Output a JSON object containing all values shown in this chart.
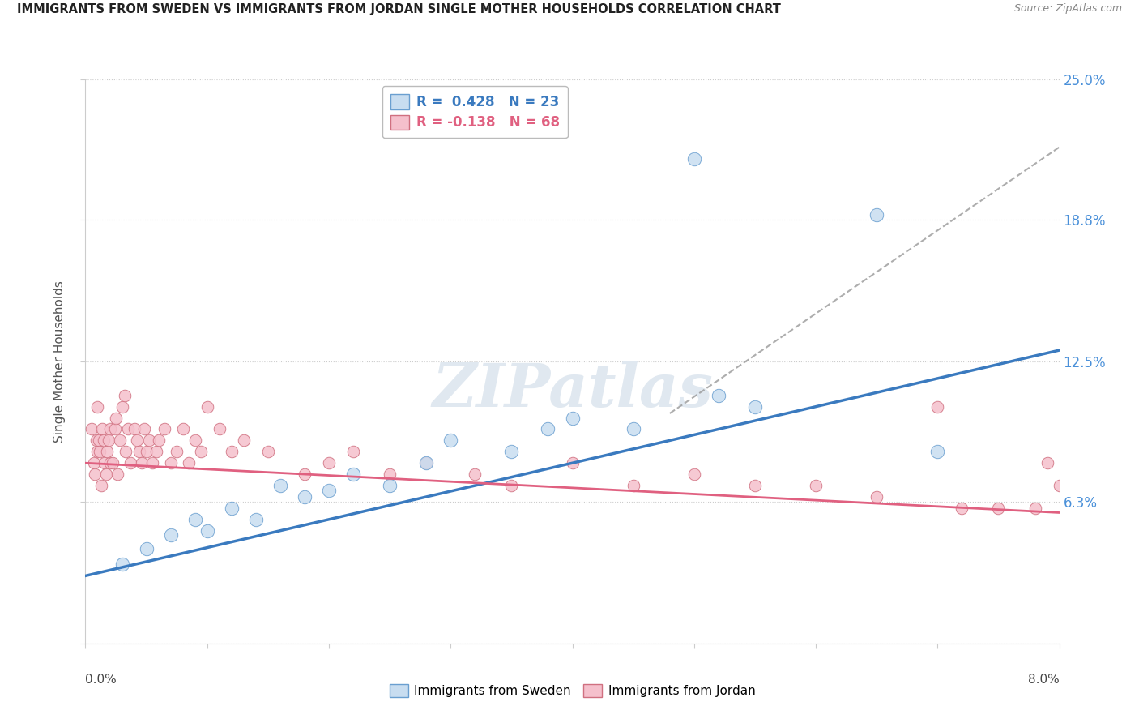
{
  "title": "IMMIGRANTS FROM SWEDEN VS IMMIGRANTS FROM JORDAN SINGLE MOTHER HOUSEHOLDS CORRELATION CHART",
  "source": "Source: ZipAtlas.com",
  "ylabel": "Single Mother Households",
  "xmin": 0.0,
  "xmax": 8.0,
  "ymin": 0.0,
  "ymax": 25.0,
  "yticks": [
    0.0,
    6.3,
    12.5,
    18.8,
    25.0
  ],
  "ytick_labels": [
    "",
    "6.3%",
    "12.5%",
    "18.8%",
    "25.0%"
  ],
  "color_sweden_fill": "#c8ddf0",
  "color_sweden_edge": "#6a9fd0",
  "color_sweden_line": "#3a7abf",
  "color_jordan_fill": "#f5c0cc",
  "color_jordan_edge": "#d07080",
  "color_jordan_line": "#e06080",
  "sweden_points_x": [
    0.3,
    0.5,
    0.7,
    0.9,
    1.0,
    1.2,
    1.4,
    1.6,
    1.8,
    2.0,
    2.2,
    2.5,
    2.8,
    3.0,
    3.5,
    3.8,
    4.0,
    4.5,
    5.0,
    5.2,
    5.5,
    6.5,
    7.0
  ],
  "sweden_points_y": [
    3.5,
    4.2,
    4.8,
    5.5,
    5.0,
    6.0,
    5.5,
    7.0,
    6.5,
    6.8,
    7.5,
    7.0,
    8.0,
    9.0,
    8.5,
    9.5,
    10.0,
    9.5,
    21.5,
    11.0,
    10.5,
    19.0,
    8.5
  ],
  "jordan_points_x": [
    0.05,
    0.07,
    0.08,
    0.09,
    0.1,
    0.1,
    0.11,
    0.12,
    0.13,
    0.14,
    0.15,
    0.16,
    0.17,
    0.18,
    0.19,
    0.2,
    0.2,
    0.22,
    0.24,
    0.25,
    0.26,
    0.28,
    0.3,
    0.32,
    0.33,
    0.35,
    0.37,
    0.4,
    0.42,
    0.44,
    0.46,
    0.48,
    0.5,
    0.52,
    0.55,
    0.58,
    0.6,
    0.65,
    0.7,
    0.75,
    0.8,
    0.85,
    0.9,
    0.95,
    1.0,
    1.1,
    1.2,
    1.3,
    1.5,
    1.8,
    2.0,
    2.2,
    2.5,
    2.8,
    3.2,
    3.5,
    4.0,
    4.5,
    5.0,
    5.5,
    6.0,
    6.5,
    7.0,
    7.2,
    7.5,
    7.8,
    7.9,
    8.0
  ],
  "jordan_points_y": [
    9.5,
    8.0,
    7.5,
    9.0,
    10.5,
    8.5,
    9.0,
    8.5,
    7.0,
    9.5,
    9.0,
    8.0,
    7.5,
    8.5,
    9.0,
    8.0,
    9.5,
    8.0,
    9.5,
    10.0,
    7.5,
    9.0,
    10.5,
    11.0,
    8.5,
    9.5,
    8.0,
    9.5,
    9.0,
    8.5,
    8.0,
    9.5,
    8.5,
    9.0,
    8.0,
    8.5,
    9.0,
    9.5,
    8.0,
    8.5,
    9.5,
    8.0,
    9.0,
    8.5,
    10.5,
    9.5,
    8.5,
    9.0,
    8.5,
    7.5,
    8.0,
    8.5,
    7.5,
    8.0,
    7.5,
    7.0,
    8.0,
    7.0,
    7.5,
    7.0,
    7.0,
    6.5,
    10.5,
    6.0,
    6.0,
    6.0,
    8.0,
    7.0
  ],
  "sweden_line_x0": 0.0,
  "sweden_line_x1": 8.0,
  "sweden_line_y0": 3.0,
  "sweden_line_y1": 13.0,
  "jordan_line_x0": 0.0,
  "jordan_line_x1": 8.0,
  "jordan_line_y0": 8.0,
  "jordan_line_y1": 5.8,
  "dash_line_x0": 4.8,
  "dash_line_x1": 8.0,
  "dash_line_y0": 10.2,
  "dash_line_y1": 22.0,
  "watermark_text": "ZIPatlas"
}
